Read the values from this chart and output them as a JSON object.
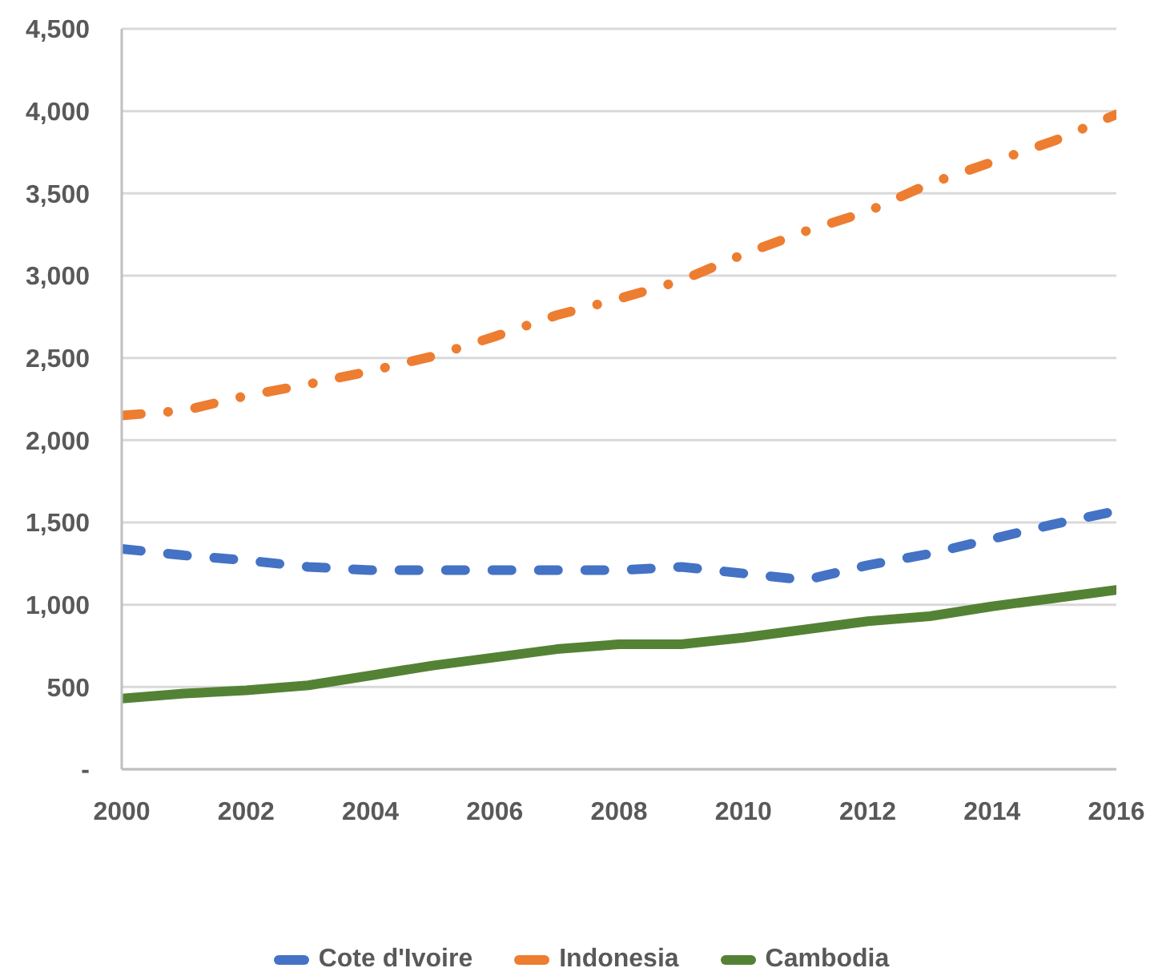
{
  "chart_data": {
    "type": "line",
    "x": [
      2000,
      2001,
      2002,
      2003,
      2004,
      2005,
      2006,
      2007,
      2008,
      2009,
      2010,
      2011,
      2012,
      2013,
      2014,
      2015,
      2016
    ],
    "series": [
      {
        "name": "Cote d'Ivoire",
        "color": "#4472c4",
        "line_style": "dashed",
        "values": [
          1340,
          1300,
          1270,
          1230,
          1210,
          1210,
          1210,
          1210,
          1210,
          1230,
          1190,
          1150,
          1240,
          1310,
          1400,
          1490,
          1570
        ]
      },
      {
        "name": "Indonesia",
        "color": "#ed7d31",
        "line_style": "dashdot",
        "values": [
          2150,
          2180,
          2270,
          2340,
          2420,
          2510,
          2630,
          2760,
          2860,
          2970,
          3130,
          3270,
          3390,
          3560,
          3690,
          3820,
          3980
        ]
      },
      {
        "name": "Cambodia",
        "color": "#548235",
        "line_style": "solid",
        "values": [
          430,
          460,
          480,
          510,
          570,
          630,
          680,
          730,
          760,
          760,
          800,
          850,
          900,
          930,
          990,
          1040,
          1090
        ]
      }
    ],
    "xlim": [
      2000,
      2016
    ],
    "xticks": [
      2000,
      2002,
      2004,
      2006,
      2008,
      2010,
      2012,
      2014,
      2016
    ],
    "ylim": [
      0,
      4500
    ],
    "yticks": [
      {
        "value": 0,
        "label": "-"
      },
      500,
      {
        "value": 1000,
        "label": "1,000"
      },
      {
        "value": 1500,
        "label": "1,500"
      },
      {
        "value": 2000,
        "label": "2,000"
      },
      {
        "value": 2500,
        "label": "2,500"
      },
      {
        "value": 3000,
        "label": "3,000"
      },
      {
        "value": 3500,
        "label": "3,500"
      },
      {
        "value": 4000,
        "label": "4,000"
      },
      {
        "value": 4500,
        "label": "4,500"
      }
    ],
    "grid": "y",
    "legend": "bottom",
    "marker": "none"
  }
}
